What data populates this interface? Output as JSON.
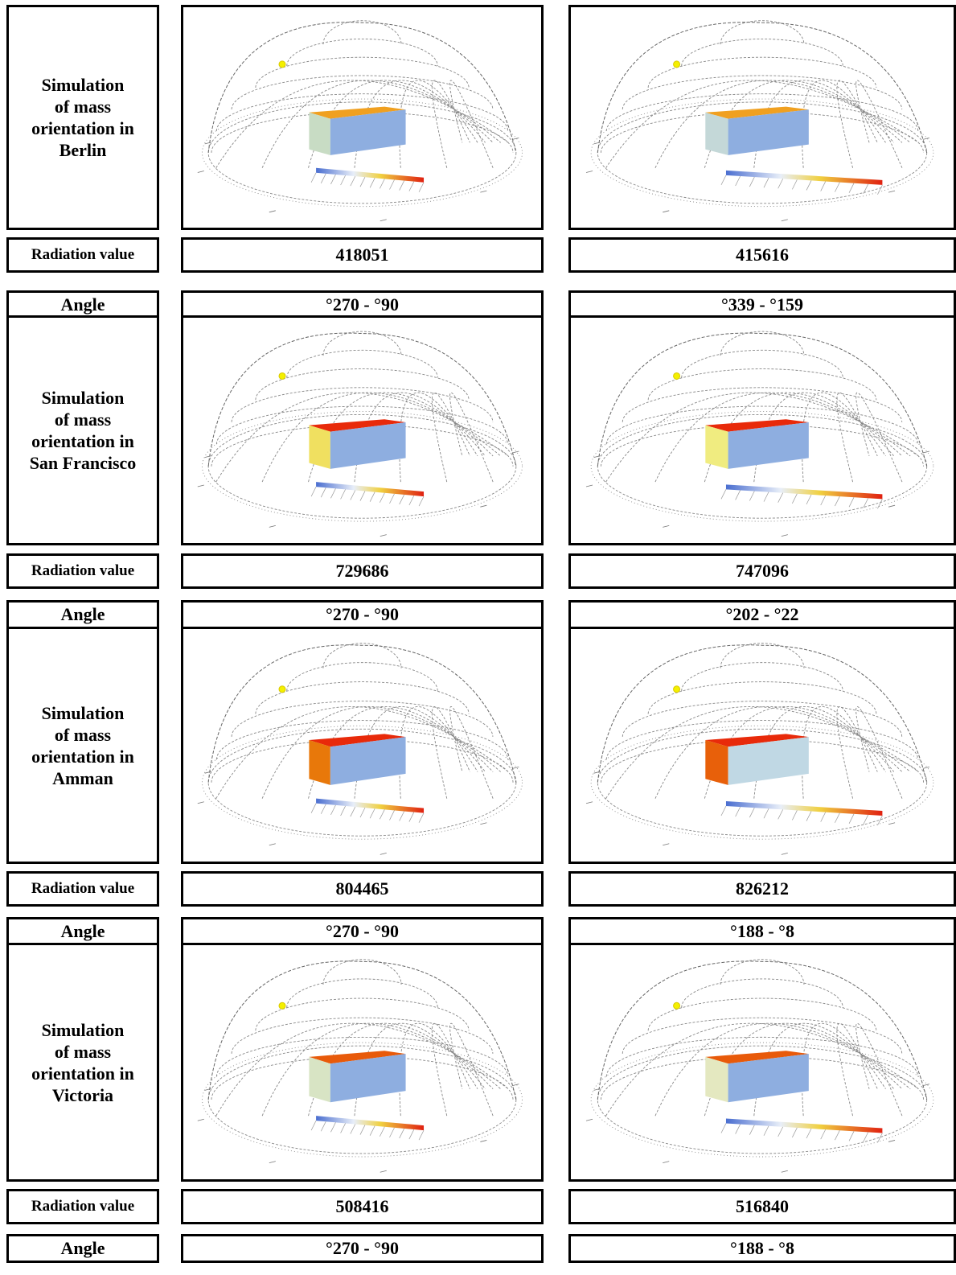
{
  "column_labels": {
    "radiation": "Radiation value",
    "angle": "Angle"
  },
  "rows": [
    {
      "title": "Simulation\nof mass\norientation in\nBerlin",
      "values": [
        "418051",
        "415616"
      ],
      "angles": [
        "°270 - °90",
        "°339 - °159"
      ],
      "box_colors": [
        {
          "top": "#f0a020",
          "front": "#c8dcc4",
          "side": "#8eaee0"
        },
        {
          "top": "#f0a020",
          "front": "#c4d8d8",
          "side": "#8eaee0"
        }
      ]
    },
    {
      "title": "Simulation\nof mass\norientation in\nSan Francisco",
      "values": [
        "729686",
        "747096"
      ],
      "angles": [
        "°270 - °90",
        "°202 - °22"
      ],
      "box_colors": [
        {
          "top": "#e82a0a",
          "front": "#f0e060",
          "side": "#8eaee0"
        },
        {
          "top": "#e82a0a",
          "front": "#f0ec80",
          "side": "#8eaee0"
        }
      ]
    },
    {
      "title": "Simulation\nof mass\norientation in\nAmman",
      "values": [
        "804465",
        "826212"
      ],
      "angles": [
        "°270 - °90",
        "°188 - °8"
      ],
      "box_colors": [
        {
          "top": "#e82a0a",
          "front": "#e8780a",
          "side": "#8eaee0"
        },
        {
          "top": "#e82a0a",
          "front": "#e8600a",
          "side": "#c0d8e4"
        }
      ]
    },
    {
      "title": "Simulation\nof mass\norientation in\nVictoria",
      "values": [
        "508416",
        "516840"
      ],
      "angles": [
        "°270 - °90",
        "°188 - °8"
      ],
      "box_colors": [
        {
          "top": "#e85a0a",
          "front": "#d8e4c4",
          "side": "#8eaee0"
        },
        {
          "top": "#e85a0a",
          "front": "#e4e8c0",
          "side": "#8eaee0"
        }
      ]
    }
  ]
}
